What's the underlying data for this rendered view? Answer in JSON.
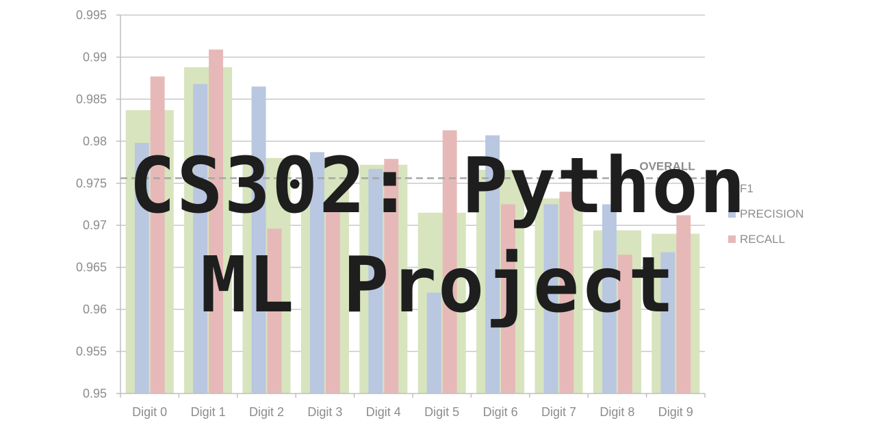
{
  "chart_data": {
    "type": "bar",
    "categories": [
      "Digit 0",
      "Digit 1",
      "Digit 2",
      "Digit 3",
      "Digit 4",
      "Digit 5",
      "Digit 6",
      "Digit 7",
      "Digit 8",
      "Digit 9"
    ],
    "series": [
      {
        "name": "F1",
        "role": "background-wide",
        "color": "#d7e4bd",
        "values": [
          0.9837,
          0.9888,
          0.978,
          0.9778,
          0.9772,
          0.9715,
          0.9766,
          0.9732,
          0.9694,
          0.969
        ]
      },
      {
        "name": "PRECISION",
        "role": "narrow-left",
        "color": "#b9c7e1",
        "values": [
          0.9798,
          0.9868,
          0.9865,
          0.9787,
          0.9767,
          0.962,
          0.9807,
          0.9725,
          0.9725,
          0.9668
        ]
      },
      {
        "name": "RECALL",
        "role": "narrow-right",
        "color": "#e6b9b8",
        "values": [
          0.9877,
          0.9909,
          0.9696,
          0.9719,
          0.9779,
          0.9813,
          0.9725,
          0.974,
          0.9665,
          0.9712
        ]
      }
    ],
    "reference_line": {
      "name": "OVERALL",
      "value": 0.9756,
      "color": "#a6a6a6",
      "style": "dashed"
    },
    "y_ticks": [
      "0.95",
      "0.955",
      "0.96",
      "0.965",
      "0.97",
      "0.975",
      "0.98",
      "0.985",
      "0.99",
      "0.995"
    ],
    "ylim": [
      0.95,
      0.995
    ],
    "grid": true,
    "legend_position": "right",
    "title": "",
    "xlabel": "",
    "ylabel": ""
  },
  "overlay": {
    "line1": "CS302: Python",
    "line2": "ML Project"
  }
}
